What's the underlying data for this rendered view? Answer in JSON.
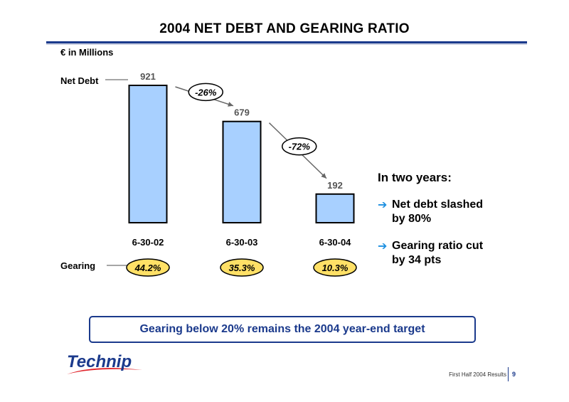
{
  "slide": {
    "title": "2004 NET DEBT AND GEARING RATIO",
    "unit_label": "€ in Millions",
    "net_debt_label": "Net Debt",
    "gearing_label": "Gearing",
    "target_text": "Gearing below 20% remains the 2004 year-end target",
    "footer": "First Half 2004 Results",
    "page_number": "9",
    "logo_text": "Technip"
  },
  "sidebar": {
    "heading": "In two years:",
    "items": [
      {
        "line1": "Net debt slashed",
        "line2": "by 80%"
      },
      {
        "line1": "Gearing ratio cut",
        "line2": "by 34 pts"
      }
    ]
  },
  "colors": {
    "bar_fill": "#a8d0ff",
    "gearing_oval": "#ffe066",
    "accent_blue": "#1b3a8c",
    "bullet_arrow": "#1e90e0"
  },
  "chart_data": {
    "type": "bar",
    "categories": [
      "6-30-02",
      "6-30-03",
      "6-30-04"
    ],
    "values": [
      921,
      679,
      192
    ],
    "value_labels": [
      "921",
      "679",
      "192"
    ],
    "gearing": [
      "44.2%",
      "35.3%",
      "10.3%"
    ],
    "changes": [
      "-26%",
      "-72%"
    ],
    "ylim": [
      0,
      921
    ]
  }
}
